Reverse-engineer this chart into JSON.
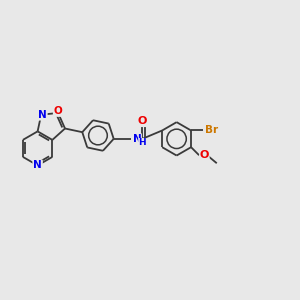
{
  "background_color": "#e8e8e8",
  "bond_color": "#3a3a3a",
  "atom_colors": {
    "N": "#0000ee",
    "O": "#ee0000",
    "Br": "#cc7700",
    "C": "#3a3a3a"
  },
  "figsize": [
    3.0,
    3.0
  ],
  "dpi": 100,
  "lw": 1.3,
  "ring_r": 0.55
}
